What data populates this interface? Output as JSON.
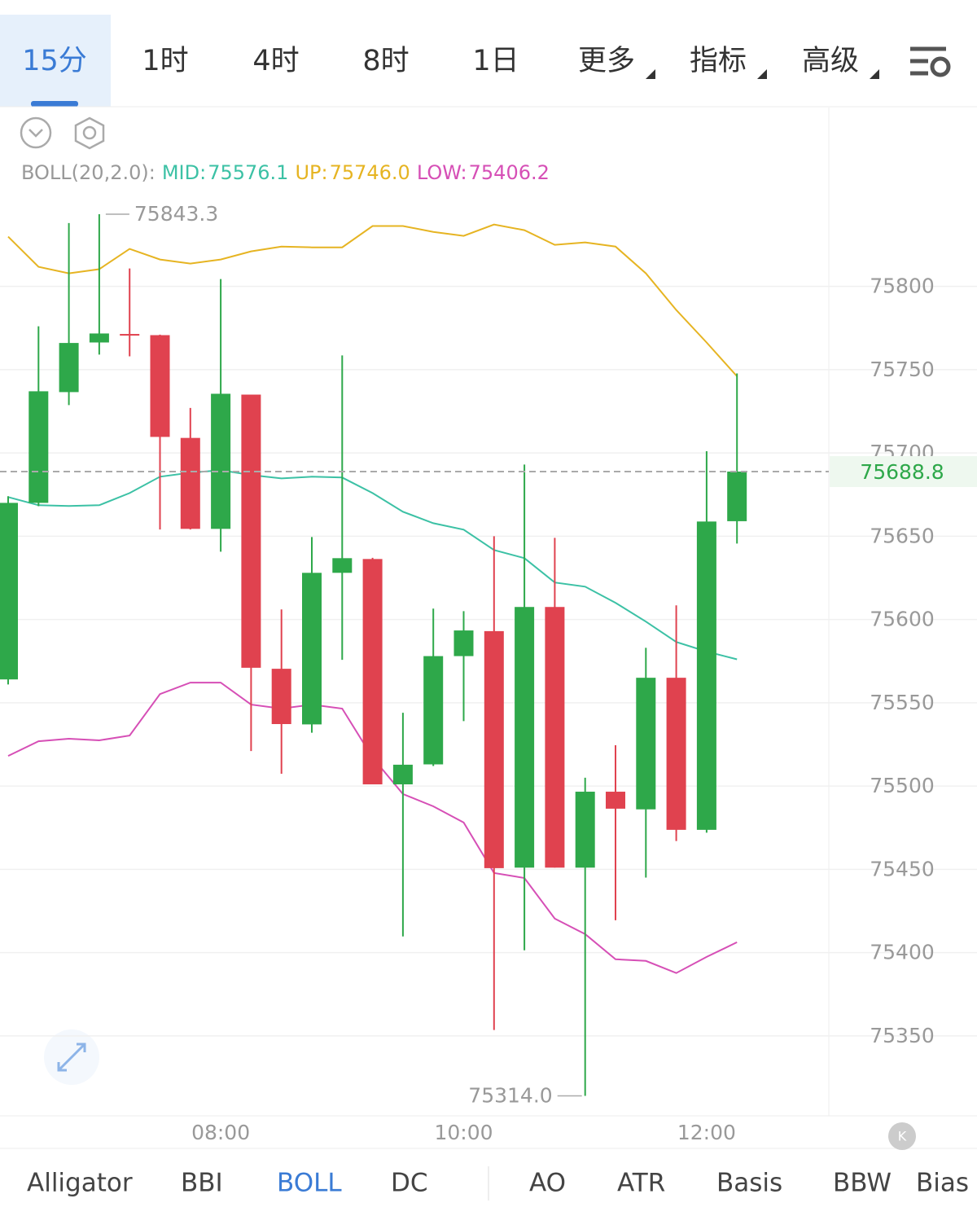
{
  "tabs": {
    "items": [
      "15分",
      "1时",
      "4时",
      "8时",
      "1日",
      "更多",
      "指标",
      "高级"
    ],
    "selected": 0
  },
  "chart_data": {
    "type": "candlestick",
    "legend_title": "BOLL(20,2.0):",
    "categories": [
      null,
      null,
      null,
      null,
      null,
      null,
      null,
      "08:00",
      null,
      null,
      null,
      null,
      null,
      null,
      null,
      "10:00",
      null,
      null,
      null,
      null,
      null,
      null,
      null,
      "12:00",
      null
    ],
    "open": [
      75564,
      75670,
      75736.5,
      75766.3,
      75771.4,
      75770.7,
      75709,
      75654.4,
      75735,
      75570.4,
      75537,
      75628,
      75636.3,
      75501,
      75513,
      75578,
      75593,
      75451,
      75607.5,
      75451,
      75496.6,
      75486,
      75565,
      75473.7,
      75659
    ],
    "high": [
      75674,
      75776,
      75838,
      75843.3,
      75810.7,
      75771,
      75727,
      75804.4,
      75735,
      75606,
      75649.5,
      75758.5,
      75637,
      75544,
      75606.5,
      75605,
      75650,
      75693,
      75649,
      75505,
      75524.5,
      75583,
      75608.5,
      75701,
      75747.7
    ],
    "low": [
      75561,
      75668,
      75728.7,
      75759,
      75758,
      75654,
      75654,
      75640.7,
      75521,
      75507.4,
      75532,
      75575.8,
      75501,
      75409.7,
      75512,
      75539,
      75353.5,
      75401.4,
      75451,
      75314.0,
      75419.4,
      75445,
      75467,
      75472,
      75645.6
    ],
    "close": [
      75670,
      75737,
      75766,
      75771.7,
      75770.5,
      75709.6,
      75654.4,
      75735.5,
      75571,
      75537.2,
      75628,
      75636.8,
      75501,
      75512.8,
      75578,
      75593.4,
      75450.7,
      75607.5,
      75451,
      75496.6,
      75486.4,
      75565,
      75473.7,
      75658.8,
      75688.8
    ],
    "up_color": "#2ea84a",
    "down_color": "#e0424f",
    "series": [
      {
        "name": "MID:",
        "color": "#3cc1a5",
        "values": [
          75673.5,
          75668.6,
          75668.1,
          75668.6,
          75675.9,
          75685.7,
          75688.1,
          75689.6,
          75686.7,
          75684.7,
          75685.7,
          75685.2,
          75675.9,
          75664.7,
          75657.8,
          75653.9,
          75641.7,
          75636.8,
          75622.2,
          75619.7,
          75610,
          75598.7,
          75586.5,
          75580.7,
          75576.1
        ],
        "value_labels": [
          null,
          null,
          null,
          null,
          null,
          null,
          null,
          null,
          null,
          null,
          null,
          null,
          null,
          null,
          null,
          null,
          null,
          null,
          null,
          null,
          null,
          null,
          null,
          null,
          "75576.1"
        ]
      },
      {
        "name": "UP:",
        "color": "#e6b422",
        "values": [
          75829.8,
          75811.7,
          75807.8,
          75810.3,
          75822.5,
          75816.1,
          75813.7,
          75816.1,
          75821,
          75823.9,
          75823.4,
          75823.4,
          75836.2,
          75836.2,
          75832.7,
          75830.3,
          75837.1,
          75833.7,
          75824.9,
          75826.4,
          75823.9,
          75807.8,
          75785.8,
          75766.3,
          75746.0
        ],
        "value_labels": [
          null,
          null,
          null,
          null,
          null,
          null,
          null,
          null,
          null,
          null,
          null,
          null,
          null,
          null,
          null,
          null,
          null,
          null,
          null,
          null,
          null,
          null,
          null,
          null,
          "75746.0"
        ]
      },
      {
        "name": "LOW:",
        "color": "#d64fb6",
        "values": [
          75518.1,
          75526.9,
          75528.4,
          75527.4,
          75530.3,
          75555.2,
          75562.1,
          75562.1,
          75548.9,
          75546.5,
          75548.9,
          75546.5,
          75517.1,
          75495.2,
          75487.8,
          75478.1,
          75447.8,
          75444.8,
          75420.4,
          75411.1,
          75396,
          75395,
          75387.7,
          75397.4,
          75406.2
        ],
        "value_labels": [
          null,
          null,
          null,
          null,
          null,
          null,
          null,
          null,
          null,
          null,
          null,
          null,
          null,
          null,
          null,
          null,
          null,
          null,
          null,
          null,
          null,
          null,
          null,
          null,
          "75406.2"
        ]
      }
    ],
    "ylim": [
      75302,
      75857
    ],
    "yticks": [
      75350,
      75400,
      75450,
      75500,
      75550,
      75600,
      75650,
      75700,
      75750,
      75800
    ],
    "grid": true,
    "annotations": [
      {
        "value": 75843.3,
        "label": "75843.3"
      },
      {
        "value": 75314.0,
        "label": "75314.0"
      }
    ],
    "last_price": {
      "value": 75688.8,
      "label": "75688.8"
    }
  },
  "indicators": {
    "items": [
      "Alligator",
      "BBI",
      "BOLL",
      "DC",
      "AO",
      "ATR",
      "Basis",
      "BBW",
      "Bias"
    ],
    "selected": 2
  }
}
